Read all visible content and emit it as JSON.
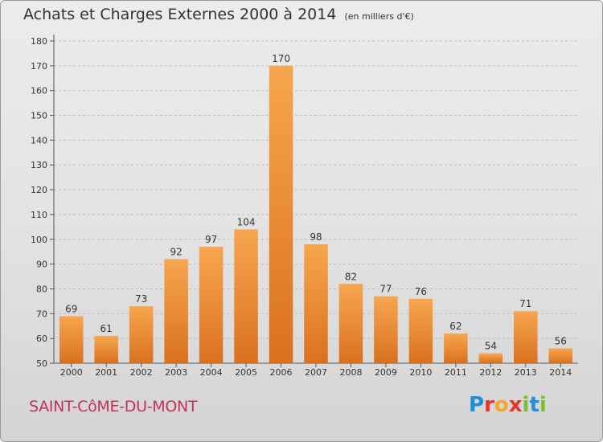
{
  "header": {
    "title": "Achats et Charges Externes 2000 à 2014",
    "unit": "(en milliers d'€)"
  },
  "footer": {
    "commune": "SAINT-CôME-DU-MONT",
    "brand": "Proxiti"
  },
  "colors": {
    "bar_light": "#f7a650",
    "bar_dark": "#d9711f",
    "commune": "#c2325a",
    "brand_letters": [
      "#1e8fd8",
      "#e8332a",
      "#f5a623",
      "#e8332a",
      "#7dbb2f",
      "#1e8fd8",
      "#7dbb2f"
    ]
  },
  "chart_data": {
    "type": "bar",
    "categories": [
      "2000",
      "2001",
      "2002",
      "2003",
      "2004",
      "2005",
      "2006",
      "2007",
      "2008",
      "2009",
      "2010",
      "2011",
      "2012",
      "2013",
      "2014"
    ],
    "values": [
      69,
      61,
      73,
      92,
      97,
      104,
      170,
      98,
      82,
      77,
      76,
      62,
      54,
      71,
      56
    ],
    "title": "Achats et Charges Externes 2000 à 2014",
    "ylim": [
      50,
      180
    ],
    "yticks": [
      50,
      60,
      70,
      80,
      90,
      100,
      110,
      120,
      130,
      140,
      150,
      160,
      170,
      180
    ],
    "grid": "horizontal dashed",
    "data_labels": true
  }
}
